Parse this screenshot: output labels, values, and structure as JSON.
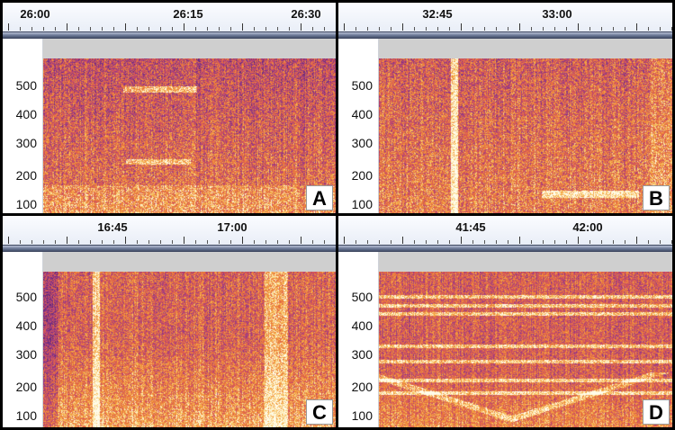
{
  "panels": [
    {
      "id": "A",
      "letter": "A",
      "timeline_ticks": [
        "26:00",
        "26:15",
        "26:30"
      ],
      "frequency_ticks": [
        "500",
        "400",
        "300",
        "200",
        "100"
      ],
      "colors": {
        "background": "#d9543a",
        "hot": "#fff6c8",
        "cold": "#7a3f98"
      }
    },
    {
      "id": "B",
      "letter": "B",
      "timeline_ticks": [
        "32:45",
        "33:00"
      ],
      "frequency_ticks": [
        "500",
        "400",
        "300",
        "200",
        "100"
      ],
      "colors": {
        "background": "#d9543a",
        "hot": "#fff6c8",
        "cold": "#7a3f98"
      }
    },
    {
      "id": "C",
      "letter": "C",
      "timeline_ticks": [
        "16:45",
        "17:00"
      ],
      "frequency_ticks": [
        "500",
        "400",
        "300",
        "200",
        "100"
      ],
      "colors": {
        "background": "#e8783a",
        "hot": "#fffbe6",
        "cold": "#8a3f8a"
      }
    },
    {
      "id": "D",
      "letter": "D",
      "timeline_ticks": [
        "41:45",
        "42:00"
      ],
      "frequency_ticks": [
        "500",
        "400",
        "300",
        "200",
        "100"
      ],
      "colors": {
        "background": "#e06a3a",
        "hot": "#fffbe6",
        "cold": "#8a3f8a"
      }
    }
  ],
  "colormap": "inferno-like (purple to orange to cream)"
}
